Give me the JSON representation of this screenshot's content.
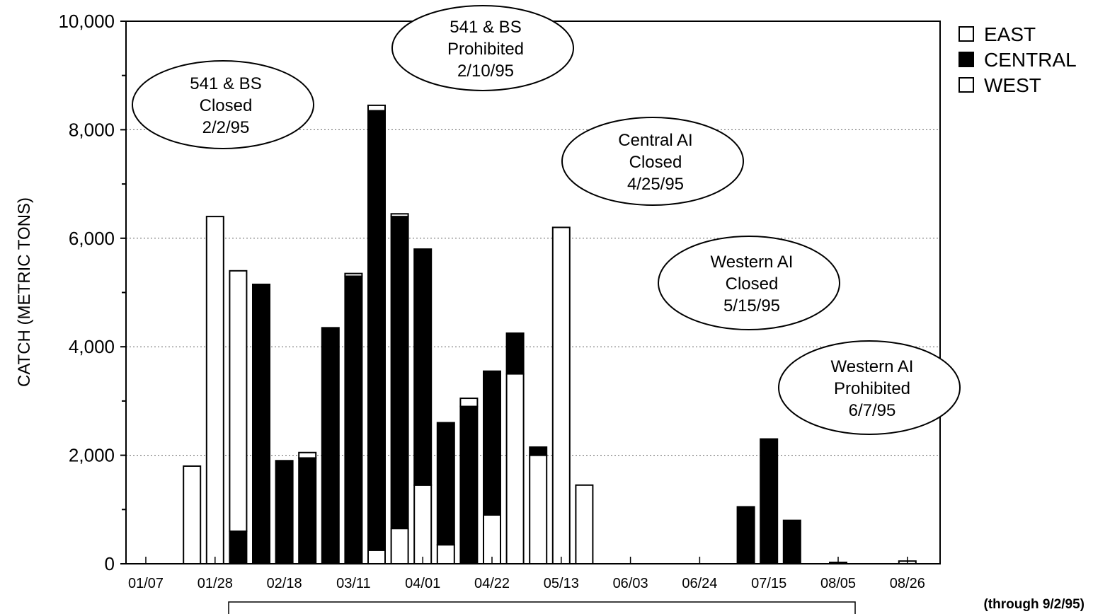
{
  "chart_data": {
    "type": "bar",
    "stacked": true,
    "title": "",
    "xlabel": "",
    "ylabel": "CATCH (METRIC TONS)",
    "ylim": [
      0,
      10000
    ],
    "yticks": [
      "0",
      "2,000",
      "4,000",
      "6,000",
      "8,000",
      "10,000"
    ],
    "xtick_labels": [
      "01/07",
      "01/28",
      "02/18",
      "03/11",
      "04/01",
      "04/22",
      "05/13",
      "06/03",
      "06/24",
      "07/15",
      "08/05",
      "08/26"
    ],
    "categories": [
      "01/07",
      "01/14",
      "01/21",
      "01/28",
      "02/04",
      "02/11",
      "02/18",
      "02/25",
      "03/04",
      "03/11",
      "03/18",
      "03/25",
      "04/01",
      "04/08",
      "04/15",
      "04/22",
      "04/29",
      "05/06",
      "05/13",
      "05/20",
      "05/27",
      "06/03",
      "06/10",
      "06/17",
      "06/24",
      "07/01",
      "07/08",
      "07/15",
      "07/22",
      "07/29",
      "08/05",
      "08/12",
      "08/19",
      "08/26"
    ],
    "series": [
      {
        "name": "WEST",
        "color": "#ffffff",
        "values": [
          0,
          0,
          0,
          0,
          0,
          0,
          0,
          0,
          0,
          0,
          250,
          650,
          1450,
          350,
          0,
          900,
          3500,
          2000,
          0,
          0,
          0,
          0,
          0,
          0,
          0,
          0,
          0,
          0,
          0,
          0,
          0,
          0,
          0,
          0
        ]
      },
      {
        "name": "CENTRAL",
        "color": "#000000",
        "values": [
          0,
          0,
          0,
          0,
          600,
          5150,
          1900,
          1950,
          4350,
          5300,
          8100,
          5750,
          4350,
          2250,
          2900,
          2650,
          750,
          150,
          0,
          0,
          0,
          0,
          0,
          0,
          0,
          0,
          1050,
          2300,
          800,
          0,
          0,
          0,
          0,
          0
        ]
      },
      {
        "name": "EAST",
        "color": "#ffffff",
        "values": [
          0,
          0,
          1800,
          6400,
          4800,
          0,
          0,
          100,
          0,
          50,
          100,
          50,
          0,
          0,
          150,
          0,
          0,
          0,
          6200,
          1450,
          0,
          0,
          0,
          0,
          0,
          0,
          0,
          0,
          0,
          0,
          20,
          0,
          0,
          50
        ]
      }
    ],
    "legend": {
      "position": "top-right",
      "entries": [
        "EAST",
        "CENTRAL",
        "WEST"
      ]
    },
    "annotations": [
      {
        "lines": [
          "541 & BS",
          "Closed",
          "2/2/95"
        ]
      },
      {
        "lines": [
          "541 & BS",
          "Prohibited",
          "2/10/95"
        ]
      },
      {
        "lines": [
          "Central AI",
          "Closed",
          "4/25/95"
        ]
      },
      {
        "lines": [
          "Western AI",
          "Closed",
          "5/15/95"
        ]
      },
      {
        "lines": [
          "Western AI",
          "Prohibited",
          "6/7/95"
        ]
      }
    ],
    "footnote": "(through 9/2/95)",
    "grid": true
  }
}
